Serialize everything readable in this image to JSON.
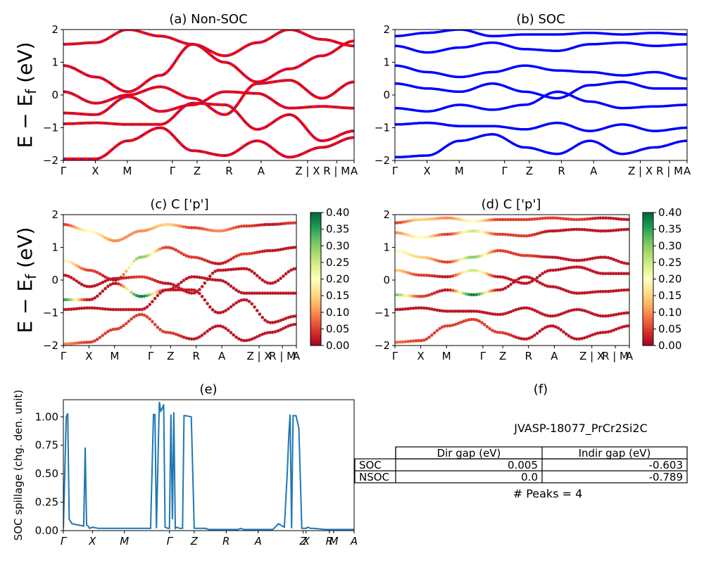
{
  "figure_id": "JVASP-18077_PrCr2Si2C",
  "kpath_labels": [
    "Γ",
    "X",
    "M",
    "Γ",
    "Z",
    "R",
    "A",
    "Z | X",
    "R | M",
    "A"
  ],
  "kpath_labels_e": [
    "Γ",
    "X",
    "M",
    "Γ",
    "Z",
    "R",
    "A",
    "Z",
    "X",
    "R",
    "M",
    "A"
  ],
  "colorbar_ticks": [
    "0.00",
    "0.05",
    "0.10",
    "0.15",
    "0.20",
    "0.25",
    "0.30",
    "0.35",
    "0.40"
  ],
  "colors": {
    "nonsoc_main": "#ff0000",
    "nonsoc_dash": "#3333dd",
    "soc": "#0000ff",
    "spillage": "#1f77b4"
  },
  "chart_data": [
    {
      "id": "a",
      "type": "line",
      "title": "(a) Non-SOC",
      "ylabel": "E − E_f (eV)",
      "ylim": [
        -2,
        2
      ],
      "yticks": [
        "−2",
        "−1",
        "0",
        "1",
        "2"
      ],
      "series": [
        {
          "values": [
            1.55,
            1.6,
            2.0,
            1.8,
            1.55,
            1.2,
            1.6,
            2.0,
            1.7,
            1.5
          ]
        },
        {
          "values": [
            0.9,
            0.55,
            0.1,
            0.6,
            1.55,
            1.0,
            0.4,
            0.8,
            1.2,
            1.65
          ]
        },
        {
          "values": [
            0.1,
            -0.25,
            0.0,
            0.25,
            -0.1,
            -0.6,
            0.35,
            0.45,
            -0.1,
            0.4
          ]
        },
        {
          "values": [
            -0.55,
            -0.6,
            -0.05,
            -0.5,
            -0.3,
            0.1,
            0.05,
            -0.4,
            -0.35,
            -0.4
          ]
        },
        {
          "values": [
            -0.88,
            -0.85,
            -0.9,
            -0.9,
            -0.25,
            -0.3,
            -1.05,
            -0.6,
            -1.4,
            -1.1
          ]
        },
        {
          "values": [
            -1.95,
            -1.95,
            -1.4,
            -1.0,
            -1.7,
            -1.85,
            -1.4,
            -1.9,
            -1.6,
            -1.3
          ]
        }
      ]
    },
    {
      "id": "b",
      "type": "line",
      "title": "(b) SOC",
      "ylabel": "",
      "ylim": [
        -2,
        2
      ],
      "yticks": [
        "−2",
        "−1",
        "0",
        "1",
        "2"
      ],
      "series": [
        {
          "values": [
            1.8,
            1.9,
            2.0,
            1.8,
            1.85,
            1.85,
            1.9,
            1.85,
            1.9,
            1.85
          ]
        },
        {
          "values": [
            1.5,
            1.3,
            1.45,
            1.6,
            1.4,
            1.35,
            1.55,
            1.6,
            1.5,
            1.55
          ]
        },
        {
          "values": [
            0.9,
            0.7,
            0.55,
            0.7,
            0.9,
            0.75,
            0.7,
            0.6,
            0.7,
            0.5
          ]
        },
        {
          "values": [
            0.35,
            0.2,
            0.1,
            0.35,
            0.1,
            -0.1,
            0.3,
            0.4,
            0.2,
            0.2
          ]
        },
        {
          "values": [
            -0.4,
            -0.5,
            -0.3,
            -0.45,
            -0.3,
            0.1,
            -0.2,
            -0.4,
            -0.35,
            -0.3
          ]
        },
        {
          "values": [
            -0.9,
            -0.85,
            -0.95,
            -0.95,
            -1.05,
            -0.85,
            -1.1,
            -0.9,
            -1.1,
            -1.0
          ]
        },
        {
          "values": [
            -1.9,
            -1.85,
            -1.4,
            -1.2,
            -1.6,
            -1.8,
            -1.4,
            -1.8,
            -1.6,
            -1.4
          ]
        }
      ]
    },
    {
      "id": "c",
      "type": "scatter",
      "title": "(c)  C ['p']",
      "ylabel": "E − E_f (eV)",
      "ylim": [
        -2,
        2
      ],
      "clim": [
        0,
        0.4
      ],
      "yticks": [
        "−2",
        "−1",
        "0",
        "1",
        "2"
      ],
      "series": [
        {
          "values": [
            1.7,
            1.5,
            1.2,
            1.5,
            1.7,
            1.6,
            1.5,
            1.65,
            1.7,
            1.75
          ],
          "weight": [
            0.05,
            0.2,
            0.1,
            0.1,
            0.15,
            0.05,
            0.1,
            0.05,
            0.02,
            0.05
          ]
        },
        {
          "values": [
            0.6,
            0.3,
            0.0,
            0.7,
            1.0,
            0.7,
            0.5,
            0.8,
            0.9,
            1.0
          ],
          "weight": [
            0.2,
            0.05,
            0.02,
            0.3,
            0.05,
            0.05,
            0.02,
            0.05,
            0.02,
            0.02
          ]
        },
        {
          "values": [
            0.15,
            -0.2,
            0.05,
            0.1,
            -0.1,
            -0.4,
            0.3,
            0.35,
            -0.1,
            0.35
          ],
          "weight": [
            0.02,
            0.02,
            0.02,
            0.05,
            0.02,
            0.02,
            0.02,
            0.02,
            0.02,
            0.02
          ]
        },
        {
          "values": [
            -0.6,
            -0.6,
            -0.1,
            -0.5,
            -0.3,
            0.1,
            0.0,
            -0.4,
            -0.4,
            -0.4
          ],
          "weight": [
            0.35,
            0.02,
            0.02,
            0.38,
            0.02,
            0.02,
            0.02,
            0.02,
            0.02,
            0.02
          ]
        },
        {
          "values": [
            -0.9,
            -0.85,
            -0.9,
            -0.9,
            -0.3,
            -0.3,
            -1.0,
            -0.6,
            -1.3,
            -1.1
          ],
          "weight": [
            0.02,
            0.02,
            0.02,
            0.02,
            0.02,
            0.02,
            0.02,
            0.02,
            0.02,
            0.02
          ]
        },
        {
          "values": [
            -1.95,
            -1.9,
            -1.5,
            -1.05,
            -1.6,
            -1.8,
            -1.4,
            -1.85,
            -1.6,
            -1.35
          ],
          "weight": [
            0.1,
            0.05,
            0.05,
            0.05,
            0.05,
            0.02,
            0.02,
            0.02,
            0.02,
            0.02
          ]
        }
      ]
    },
    {
      "id": "d",
      "type": "scatter",
      "title": "(d) C ['p']",
      "ylabel": "",
      "ylim": [
        -2,
        2
      ],
      "clim": [
        0,
        0.4
      ],
      "yticks": [
        "−2",
        "−1",
        "0",
        "1",
        "2"
      ],
      "series": [
        {
          "values": [
            1.75,
            1.85,
            1.9,
            1.8,
            1.85,
            1.85,
            1.9,
            1.85,
            1.9,
            1.85
          ],
          "weight": [
            0.05,
            0.15,
            0.1,
            0.2,
            0.05,
            0.05,
            0.05,
            0.05,
            0.02,
            0.02
          ]
        },
        {
          "values": [
            1.45,
            1.3,
            1.4,
            1.5,
            1.4,
            1.35,
            1.5,
            1.55,
            1.5,
            1.55
          ],
          "weight": [
            0.1,
            0.2,
            0.05,
            0.25,
            0.05,
            0.05,
            0.02,
            0.02,
            0.02,
            0.02
          ]
        },
        {
          "values": [
            0.9,
            0.7,
            0.55,
            0.7,
            0.9,
            0.75,
            0.7,
            0.6,
            0.7,
            0.5
          ],
          "weight": [
            0.2,
            0.15,
            0.05,
            0.3,
            0.05,
            0.05,
            0.02,
            0.02,
            0.02,
            0.02
          ]
        },
        {
          "values": [
            0.3,
            0.15,
            0.1,
            0.3,
            0.1,
            -0.1,
            0.3,
            0.4,
            0.2,
            0.2
          ],
          "weight": [
            0.15,
            0.05,
            0.02,
            0.25,
            0.02,
            0.02,
            0.02,
            0.02,
            0.02,
            0.02
          ]
        },
        {
          "values": [
            -0.45,
            -0.5,
            -0.3,
            -0.45,
            -0.3,
            0.1,
            -0.2,
            -0.4,
            -0.35,
            -0.3
          ],
          "weight": [
            0.3,
            0.05,
            0.02,
            0.38,
            0.02,
            0.02,
            0.02,
            0.02,
            0.02,
            0.02
          ]
        },
        {
          "values": [
            -0.9,
            -0.85,
            -0.95,
            -0.95,
            -1.05,
            -0.85,
            -1.1,
            -0.9,
            -1.1,
            -1.0
          ],
          "weight": [
            0.02,
            0.02,
            0.02,
            0.02,
            0.02,
            0.02,
            0.02,
            0.02,
            0.02,
            0.02
          ]
        },
        {
          "values": [
            -1.9,
            -1.85,
            -1.4,
            -1.2,
            -1.6,
            -1.8,
            -1.4,
            -1.8,
            -1.6,
            -1.4
          ],
          "weight": [
            0.08,
            0.05,
            0.05,
            0.05,
            0.05,
            0.02,
            0.02,
            0.02,
            0.02,
            0.02
          ]
        }
      ]
    },
    {
      "id": "e",
      "type": "line",
      "title": "(e)",
      "ylabel": "SOC spillage (chg. den. unit)",
      "ylim": [
        0,
        1.15
      ],
      "yticks": [
        "0.00",
        "0.25",
        "0.50",
        "0.75",
        "1.00"
      ],
      "x": [
        0,
        0.01,
        0.015,
        0.02,
        0.03,
        0.05,
        0.07,
        0.075,
        0.08,
        0.085,
        0.09,
        0.1,
        0.12,
        0.3,
        0.31,
        0.315,
        0.32,
        0.33,
        0.335,
        0.34,
        0.345,
        0.35,
        0.36,
        0.365,
        0.37,
        0.375,
        0.38,
        0.385,
        0.39,
        0.4,
        0.405,
        0.41,
        0.415,
        0.42,
        0.44,
        0.45,
        0.46,
        0.47,
        0.48,
        0.49,
        0.5,
        0.55,
        0.6,
        0.61,
        0.62,
        0.65,
        0.7,
        0.72,
        0.74,
        0.76,
        0.77,
        0.775,
        0.78,
        0.785,
        0.79,
        0.8,
        0.81,
        0.82,
        0.825,
        0.83,
        0.835,
        0.84,
        0.85,
        0.86,
        0.9,
        1.0
      ],
      "y": [
        0.02,
        1.0,
        1.03,
        0.1,
        0.06,
        0.05,
        0.04,
        0.73,
        0.05,
        0.04,
        0.02,
        0.03,
        0.02,
        0.02,
        1.02,
        1.02,
        0.02,
        1.13,
        1.05,
        1.07,
        1.11,
        0.03,
        0.02,
        0.02,
        1.02,
        0.1,
        1.04,
        0.02,
        0.03,
        0.02,
        0.02,
        0.02,
        1.01,
        1.01,
        1.0,
        0.02,
        0.02,
        0.02,
        0.02,
        0.02,
        0.01,
        0.01,
        0.01,
        0.02,
        0.01,
        0.01,
        0.01,
        0.01,
        0.06,
        0.03,
        0.5,
        0.82,
        1.02,
        0.02,
        1.01,
        1.01,
        0.9,
        0.02,
        0.02,
        0.02,
        0.02,
        0.03,
        0.02,
        0.02,
        0.01,
        0.01
      ]
    }
  ],
  "table": {
    "title": "(f)",
    "caption": "JVASP-18077_PrCr2Si2C",
    "headers": [
      "",
      "Dir gap (eV)",
      "Indir gap (eV)"
    ],
    "rows": [
      [
        "SOC",
        "0.005",
        "-0.603"
      ],
      [
        "NSOC",
        "0.0",
        "-0.789"
      ]
    ],
    "footer": "# Peaks = 4"
  }
}
